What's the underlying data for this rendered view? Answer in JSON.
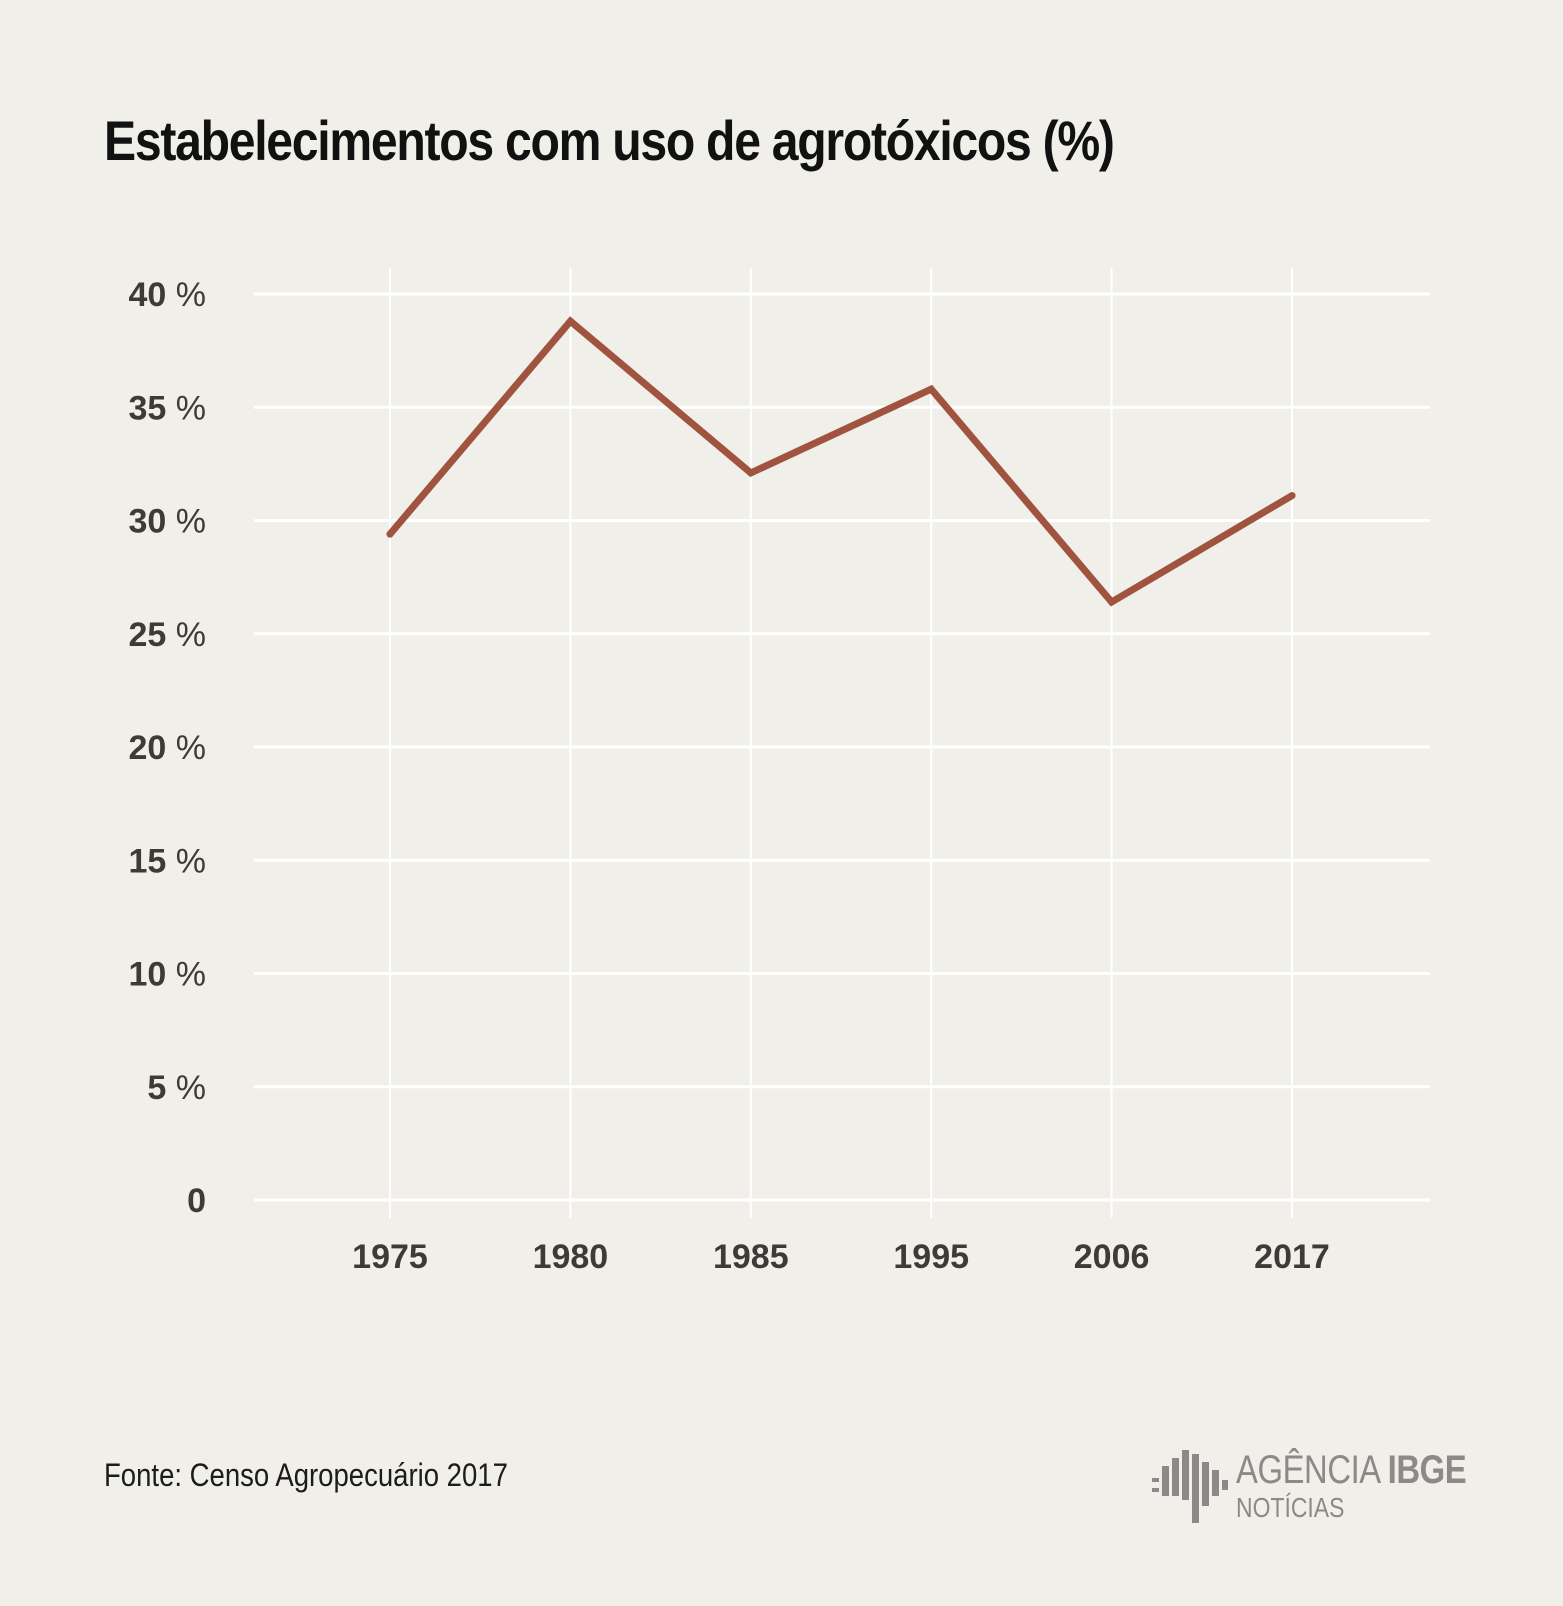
{
  "chart_data": {
    "type": "line",
    "title": "Estabelecimentos com uso de agrotóxicos (%)",
    "categories": [
      "1975",
      "1980",
      "1985",
      "1995",
      "2006",
      "2017"
    ],
    "series": [
      {
        "values": [
          29.4,
          38.8,
          32.1,
          35.8,
          26.4,
          31.1
        ]
      }
    ],
    "yticks": [
      {
        "value": 0,
        "number": "0",
        "unit": ""
      },
      {
        "value": 5,
        "number": "5",
        "unit": "%"
      },
      {
        "value": 10,
        "number": "10",
        "unit": "%"
      },
      {
        "value": 15,
        "number": "15",
        "unit": "%"
      },
      {
        "value": 20,
        "number": "20",
        "unit": "%"
      },
      {
        "value": 25,
        "number": "25",
        "unit": "%"
      },
      {
        "value": 30,
        "number": "30",
        "unit": "%"
      },
      {
        "value": 35,
        "number": "35",
        "unit": "%"
      },
      {
        "value": 40,
        "number": "40",
        "unit": "%"
      }
    ],
    "ylim": [
      0,
      40
    ],
    "xlabel": "",
    "ylabel": "",
    "grid": true,
    "legend": "none"
  },
  "colors": {
    "background": "#f1efe9",
    "grid": "#ffffff",
    "line": "#a0533f",
    "tick_text": "#3e3a38",
    "title": "#111111",
    "logo": "#8c8a88"
  },
  "footer": {
    "source": "Fonte: Censo Agropecuário 2017",
    "logo_word": "AGÊNCIA",
    "logo_brand": "IBGE",
    "logo_sub": "NOTÍCIAS",
    "logo_icon": "ibge-bars-icon"
  }
}
